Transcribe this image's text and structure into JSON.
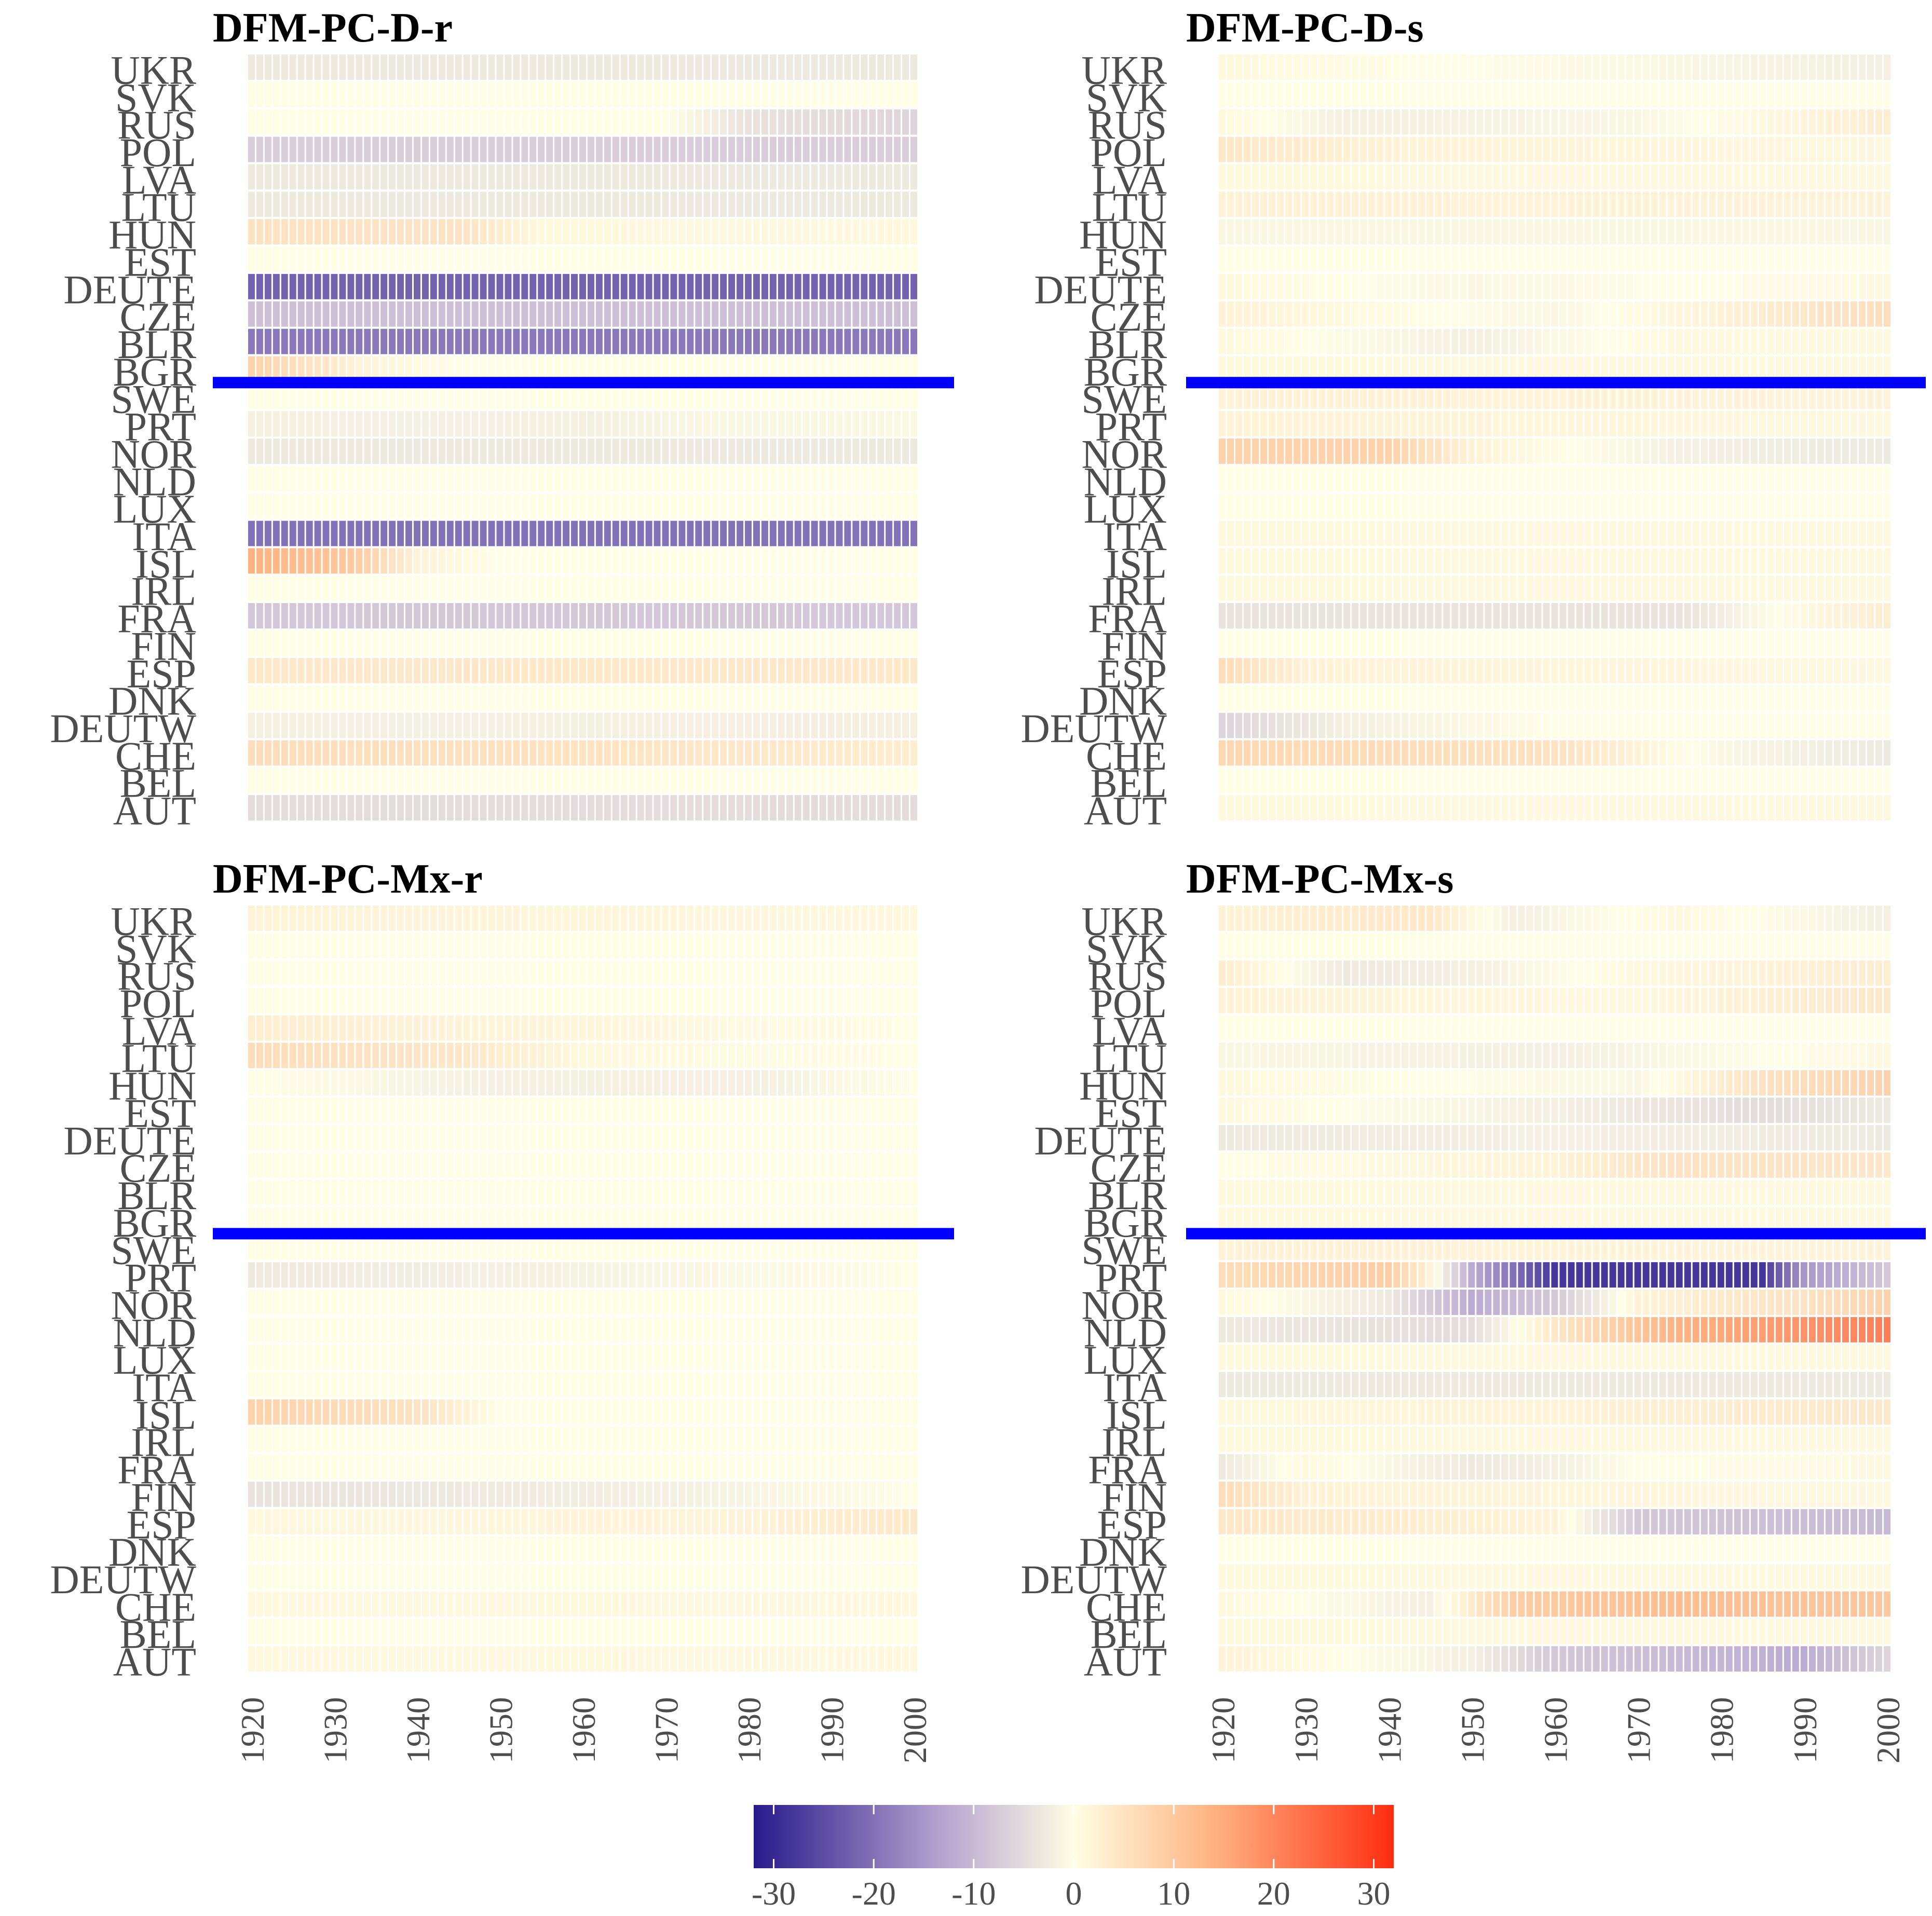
{
  "chart_data": [
    {
      "type": "heatmap",
      "title": "DFM-PC-D-r",
      "rows": [
        "UKR",
        "SVK",
        "RUS",
        "POL",
        "LVA",
        "LTU",
        "HUN",
        "EST",
        "DEUTE",
        "CZE",
        "BLR",
        "BGR",
        "SWE",
        "PRT",
        "NOR",
        "NLD",
        "LUX",
        "ITA",
        "ISL",
        "IRL",
        "FRA",
        "FIN",
        "ESP",
        "DNK",
        "DEUTW",
        "CHE",
        "BEL",
        "AUT"
      ],
      "x_start": 1920,
      "x_end": 2000,
      "x_ticks": [
        "1920",
        "1930",
        "1940",
        "1950",
        "1960",
        "1970",
        "1980",
        "1990",
        "2000"
      ],
      "group_separator_after_row": "BGR",
      "rows_data": {
        "UKR": [
          [
            1920,
            -3
          ],
          [
            2000,
            -3
          ]
        ],
        "RUS": [
          [
            1920,
            0
          ],
          [
            1970,
            0
          ],
          [
            1980,
            -4
          ],
          [
            2000,
            -6
          ]
        ],
        "POL": [
          [
            1920,
            -7
          ],
          [
            2000,
            -7
          ]
        ],
        "LVA": [
          [
            1920,
            -3
          ],
          [
            2000,
            -3
          ]
        ],
        "LTU": [
          [
            1920,
            -3
          ],
          [
            2000,
            -3
          ]
        ],
        "HUN": [
          [
            1920,
            5
          ],
          [
            1945,
            5
          ],
          [
            1955,
            1
          ],
          [
            2000,
            1
          ]
        ],
        "DEUTE": [
          [
            1920,
            -22
          ],
          [
            2000,
            -22
          ]
        ],
        "CZE": [
          [
            1920,
            -9
          ],
          [
            2000,
            -9
          ]
        ],
        "BLR": [
          [
            1920,
            -19
          ],
          [
            2000,
            -19
          ]
        ],
        "BGR": [
          [
            1920,
            8
          ],
          [
            1933,
            2
          ],
          [
            1945,
            0
          ],
          [
            2000,
            0
          ]
        ],
        "PRT": [
          [
            1920,
            -2
          ],
          [
            1960,
            -2
          ],
          [
            1975,
            -1
          ],
          [
            2000,
            -1
          ]
        ],
        "NOR": [
          [
            1920,
            -3
          ],
          [
            2000,
            -3
          ]
        ],
        "ITA": [
          [
            1920,
            -20
          ],
          [
            2000,
            -20
          ]
        ],
        "ISL": [
          [
            1920,
            14
          ],
          [
            1932,
            10
          ],
          [
            1940,
            2
          ],
          [
            1950,
            0
          ],
          [
            2000,
            0
          ]
        ],
        "FRA": [
          [
            1920,
            -8
          ],
          [
            2000,
            -8
          ]
        ],
        "ESP": [
          [
            1920,
            4
          ],
          [
            2000,
            4
          ]
        ],
        "DEUTW": [
          [
            1920,
            -2
          ],
          [
            2000,
            -2
          ]
        ],
        "CHE": [
          [
            1920,
            6
          ],
          [
            1960,
            5
          ],
          [
            2000,
            3
          ]
        ],
        "AUT": [
          [
            1920,
            -5
          ],
          [
            2000,
            -5
          ]
        ]
      }
    },
    {
      "type": "heatmap",
      "title": "DFM-PC-D-s",
      "rows": [
        "UKR",
        "SVK",
        "RUS",
        "POL",
        "LVA",
        "LTU",
        "HUN",
        "EST",
        "DEUTE",
        "CZE",
        "BLR",
        "BGR",
        "SWE",
        "PRT",
        "NOR",
        "NLD",
        "LUX",
        "ITA",
        "ISL",
        "IRL",
        "FRA",
        "FIN",
        "ESP",
        "DNK",
        "DEUTW",
        "CHE",
        "BEL",
        "AUT"
      ],
      "x_start": 1920,
      "x_end": 2000,
      "x_ticks": [
        "1920",
        "1930",
        "1940",
        "1950",
        "1960",
        "1970",
        "1980",
        "1990",
        "2000"
      ],
      "group_separator_after_row": "BGR",
      "rows_data": {
        "UKR": [
          [
            1920,
            1
          ],
          [
            2000,
            -2
          ]
        ],
        "RUS": [
          [
            1920,
            1
          ],
          [
            1935,
            -2
          ],
          [
            1970,
            -1
          ],
          [
            2000,
            3
          ]
        ],
        "POL": [
          [
            1920,
            4
          ],
          [
            1940,
            2
          ],
          [
            2000,
            1
          ]
        ],
        "LVA": [
          [
            1920,
            1
          ],
          [
            2000,
            1
          ]
        ],
        "LTU": [
          [
            1920,
            2
          ],
          [
            2000,
            2
          ]
        ],
        "HUN": [
          [
            1920,
            -1
          ],
          [
            2000,
            -1
          ]
        ],
        "DEUTE": [
          [
            1920,
            1
          ],
          [
            1950,
            -1
          ],
          [
            2000,
            1
          ]
        ],
        "CZE": [
          [
            1920,
            2
          ],
          [
            1960,
            -1
          ],
          [
            1985,
            3
          ],
          [
            2000,
            6
          ]
        ],
        "BLR": [
          [
            1920,
            1
          ],
          [
            1950,
            -2
          ],
          [
            1975,
            1
          ],
          [
            2000,
            1
          ]
        ],
        "BGR": [
          [
            1920,
            1
          ],
          [
            2000,
            1
          ]
        ],
        "SWE": [
          [
            1920,
            2
          ],
          [
            2000,
            2
          ]
        ],
        "PRT": [
          [
            1920,
            2
          ],
          [
            2000,
            1
          ]
        ],
        "NOR": [
          [
            1920,
            8
          ],
          [
            1940,
            8
          ],
          [
            1950,
            2
          ],
          [
            1975,
            -2
          ],
          [
            2000,
            -3
          ]
        ],
        "ITA": [
          [
            1920,
            1
          ],
          [
            2000,
            1
          ]
        ],
        "ISL": [
          [
            1920,
            1
          ],
          [
            2000,
            1
          ]
        ],
        "IRL": [
          [
            1920,
            1
          ],
          [
            2000,
            1
          ]
        ],
        "FRA": [
          [
            1920,
            -4
          ],
          [
            1975,
            -4
          ],
          [
            1990,
            1
          ],
          [
            2000,
            3
          ]
        ],
        "ESP": [
          [
            1920,
            6
          ],
          [
            1930,
            2
          ],
          [
            2000,
            1
          ]
        ],
        "DEUTW": [
          [
            1920,
            -6
          ],
          [
            1935,
            -2
          ],
          [
            1960,
            0
          ],
          [
            2000,
            0
          ]
        ],
        "CHE": [
          [
            1920,
            7
          ],
          [
            1960,
            5
          ],
          [
            1980,
            -1
          ],
          [
            2000,
            -3
          ]
        ],
        "AUT": [
          [
            1920,
            1
          ],
          [
            2000,
            1
          ]
        ]
      }
    },
    {
      "type": "heatmap",
      "title": "DFM-PC-Mx-r",
      "rows": [
        "UKR",
        "SVK",
        "RUS",
        "POL",
        "LVA",
        "LTU",
        "HUN",
        "EST",
        "DEUTE",
        "CZE",
        "BLR",
        "BGR",
        "SWE",
        "PRT",
        "NOR",
        "NLD",
        "LUX",
        "ITA",
        "ISL",
        "IRL",
        "FRA",
        "FIN",
        "ESP",
        "DNK",
        "DEUTW",
        "CHE",
        "BEL",
        "AUT"
      ],
      "x_start": 1920,
      "x_end": 2000,
      "x_ticks": [
        "1920",
        "1930",
        "1940",
        "1950",
        "1960",
        "1970",
        "1980",
        "1990",
        "2000"
      ],
      "group_separator_after_row": "BGR",
      "rows_data": {
        "UKR": [
          [
            1920,
            2
          ],
          [
            2000,
            1
          ]
        ],
        "LVA": [
          [
            1920,
            3
          ],
          [
            1945,
            2
          ],
          [
            2000,
            0
          ]
        ],
        "LTU": [
          [
            1920,
            6
          ],
          [
            1945,
            4
          ],
          [
            1960,
            1
          ],
          [
            2000,
            0
          ]
        ],
        "HUN": [
          [
            1920,
            0
          ],
          [
            1950,
            -2
          ],
          [
            1980,
            -2
          ],
          [
            2000,
            0
          ]
        ],
        "PRT": [
          [
            1920,
            -3
          ],
          [
            1950,
            -2
          ],
          [
            2000,
            0
          ]
        ],
        "ISL": [
          [
            1920,
            8
          ],
          [
            1940,
            5
          ],
          [
            1950,
            0
          ],
          [
            2000,
            0
          ]
        ],
        "FIN": [
          [
            1920,
            -4
          ],
          [
            1970,
            -2
          ],
          [
            2000,
            0
          ]
        ],
        "ESP": [
          [
            1920,
            1
          ],
          [
            1980,
            2
          ],
          [
            2000,
            4
          ]
        ],
        "CHE": [
          [
            1920,
            1
          ],
          [
            2000,
            1
          ]
        ],
        "AUT": [
          [
            1920,
            1
          ],
          [
            2000,
            1
          ]
        ]
      }
    },
    {
      "type": "heatmap",
      "title": "DFM-PC-Mx-s",
      "rows": [
        "UKR",
        "SVK",
        "RUS",
        "POL",
        "LVA",
        "LTU",
        "HUN",
        "EST",
        "DEUTE",
        "CZE",
        "BLR",
        "BGR",
        "SWE",
        "PRT",
        "NOR",
        "NLD",
        "LUX",
        "ITA",
        "ISL",
        "IRL",
        "FRA",
        "FIN",
        "ESP",
        "DNK",
        "DEUTW",
        "CHE",
        "BEL",
        "AUT"
      ],
      "x_start": 1920,
      "x_end": 2000,
      "x_ticks": [
        "1920",
        "1930",
        "1940",
        "1950",
        "1960",
        "1970",
        "1980",
        "1990",
        "2000"
      ],
      "group_separator_after_row": "BGR",
      "rows_data": {
        "UKR": [
          [
            1920,
            2
          ],
          [
            1945,
            4
          ],
          [
            1955,
            -2
          ],
          [
            1975,
            1
          ],
          [
            2000,
            -2
          ]
        ],
        "RUS": [
          [
            1920,
            3
          ],
          [
            1935,
            -3
          ],
          [
            1950,
            -2
          ],
          [
            1970,
            1
          ],
          [
            2000,
            3
          ]
        ],
        "POL": [
          [
            1920,
            2
          ],
          [
            1970,
            1
          ],
          [
            2000,
            4
          ]
        ],
        "LTU": [
          [
            1920,
            -1
          ],
          [
            1960,
            -2
          ],
          [
            2000,
            1
          ]
        ],
        "HUN": [
          [
            1920,
            1
          ],
          [
            1970,
            -1
          ],
          [
            1985,
            5
          ],
          [
            2000,
            8
          ]
        ],
        "EST": [
          [
            1920,
            1
          ],
          [
            1960,
            -2
          ],
          [
            1985,
            -5
          ],
          [
            2000,
            -3
          ]
        ],
        "DEUTE": [
          [
            1920,
            -3
          ],
          [
            1960,
            -2
          ],
          [
            2000,
            -3
          ]
        ],
        "CZE": [
          [
            1920,
            0
          ],
          [
            1960,
            2
          ],
          [
            1975,
            5
          ],
          [
            2000,
            4
          ]
        ],
        "BLR": [
          [
            1920,
            1
          ],
          [
            2000,
            1
          ]
        ],
        "BGR": [
          [
            1920,
            1
          ],
          [
            2000,
            1
          ]
        ],
        "SWE": [
          [
            1920,
            2
          ],
          [
            2000,
            2
          ]
        ],
        "PRT": [
          [
            1920,
            6
          ],
          [
            1940,
            9
          ],
          [
            1945,
            2
          ],
          [
            1950,
            -12
          ],
          [
            1960,
            -28
          ],
          [
            1985,
            -28
          ],
          [
            1990,
            -15
          ],
          [
            2000,
            -8
          ]
        ],
        "NOR": [
          [
            1920,
            1
          ],
          [
            1940,
            -3
          ],
          [
            1950,
            -12
          ],
          [
            1960,
            -8
          ],
          [
            1970,
            2
          ],
          [
            1990,
            5
          ],
          [
            2000,
            8
          ]
        ],
        "NLD": [
          [
            1920,
            -3
          ],
          [
            1950,
            -5
          ],
          [
            1960,
            4
          ],
          [
            1975,
            14
          ],
          [
            2000,
            21
          ]
        ],
        "LUX": [
          [
            1920,
            1
          ],
          [
            2000,
            1
          ]
        ],
        "ITA": [
          [
            1920,
            -3
          ],
          [
            2000,
            -3
          ]
        ],
        "ISL": [
          [
            1920,
            1
          ],
          [
            1960,
            2
          ],
          [
            2000,
            4
          ]
        ],
        "IRL": [
          [
            1920,
            1
          ],
          [
            2000,
            1
          ]
        ],
        "FRA": [
          [
            1920,
            -3
          ],
          [
            1930,
            1
          ],
          [
            1950,
            -3
          ],
          [
            1960,
            -2
          ],
          [
            1970,
            0
          ],
          [
            2000,
            1
          ]
        ],
        "FIN": [
          [
            1920,
            6
          ],
          [
            1930,
            2
          ],
          [
            2000,
            1
          ]
        ],
        "ESP": [
          [
            1920,
            4
          ],
          [
            1960,
            2
          ],
          [
            1970,
            -8
          ],
          [
            2000,
            -10
          ]
        ],
        "DEUTW": [
          [
            1920,
            1
          ],
          [
            2000,
            1
          ]
        ],
        "CHE": [
          [
            1920,
            1
          ],
          [
            1945,
            -2
          ],
          [
            1955,
            9
          ],
          [
            1975,
            12
          ],
          [
            2000,
            10
          ]
        ],
        "BEL": [
          [
            1920,
            1
          ],
          [
            2000,
            1
          ]
        ],
        "AUT": [
          [
            1920,
            2
          ],
          [
            1950,
            -2
          ],
          [
            1960,
            -8
          ],
          [
            1990,
            -12
          ],
          [
            2000,
            -6
          ]
        ]
      }
    }
  ],
  "legend": {
    "min": -32,
    "max": 32,
    "ticks": [
      "-30",
      "-20",
      "-10",
      "0",
      "10",
      "20",
      "30"
    ],
    "colors": {
      "low": "#281a8c",
      "mid": "#fffde4",
      "high": "#ff2d10"
    }
  },
  "colors": {
    "separator": "#0000ff",
    "axis_text": "#4d4d4d",
    "title": "#000000"
  }
}
